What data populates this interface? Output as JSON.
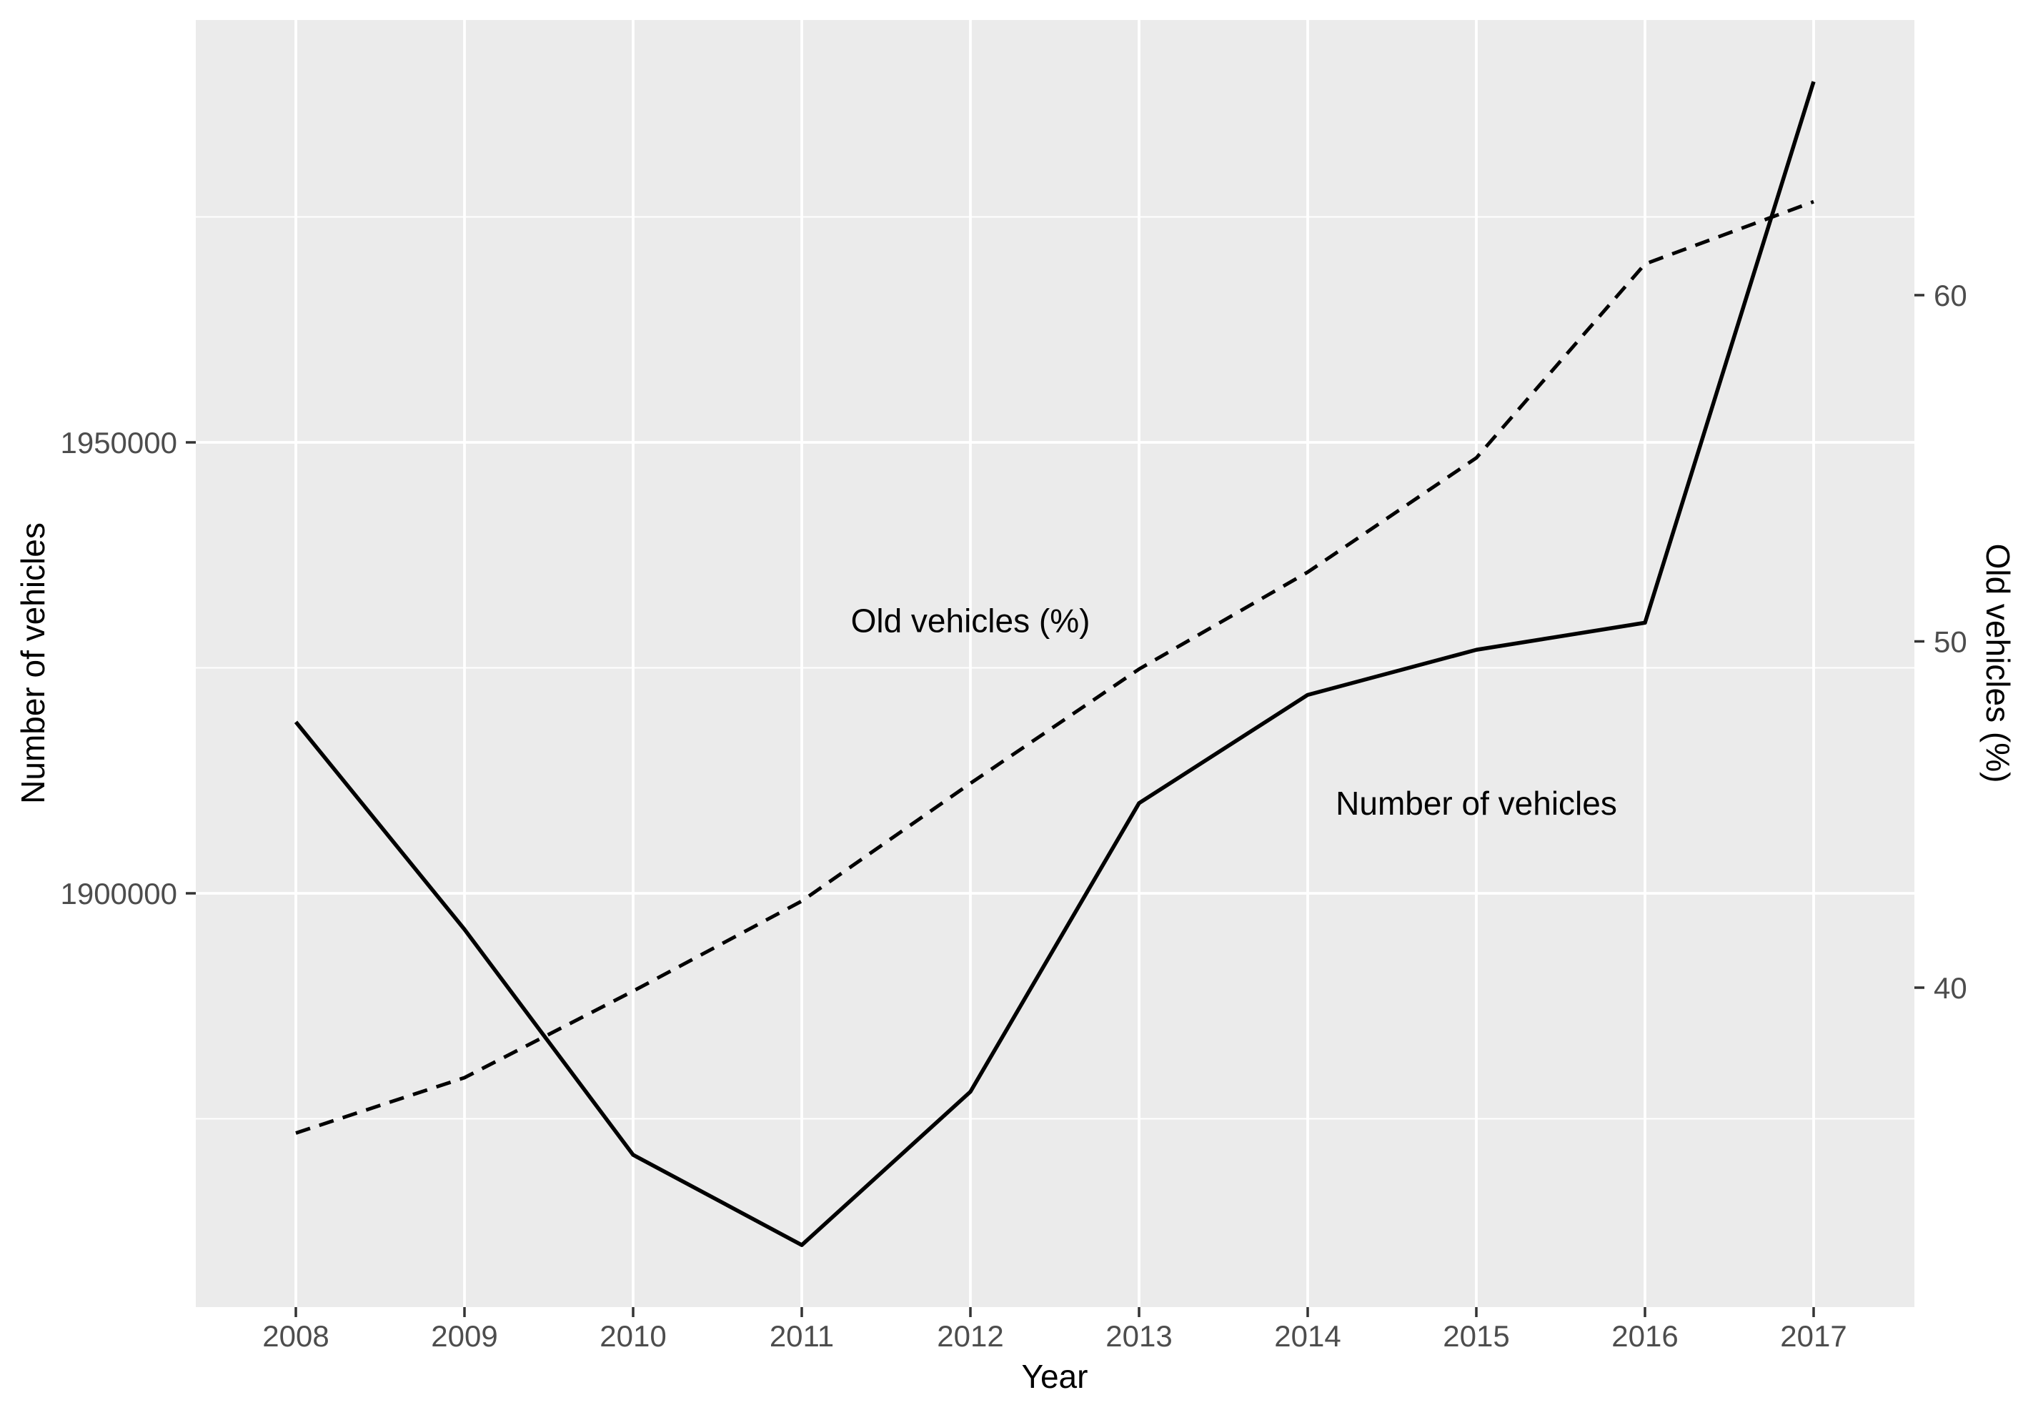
{
  "figure": {
    "background_color": "#FFFFFF",
    "panel_background_color": "#EBEBEB",
    "gridline_color": "#FFFFFF",
    "tick_color": "#333333",
    "tick_label_color": "#4D4D4D",
    "line_color": "#000000"
  },
  "chart_data": {
    "type": "line",
    "x": [
      2008,
      2009,
      2010,
      2011,
      2012,
      2013,
      2014,
      2015,
      2016,
      2017
    ],
    "x_tick_labels": [
      "2008",
      "2009",
      "2010",
      "2011",
      "2012",
      "2013",
      "2014",
      "2015",
      "2016",
      "2017"
    ],
    "series": [
      {
        "name": "Number of vehicles",
        "axis": "left",
        "line_style": "solid",
        "color": "#000000",
        "values": [
          1919000,
          1896000,
          1871000,
          1861000,
          1878000,
          1910000,
          1922000,
          1927000,
          1930000,
          1990000
        ]
      },
      {
        "name": "Old vehicles (%)",
        "axis": "right",
        "line_style": "dashed",
        "color": "#000000",
        "values": [
          35.8,
          37.4,
          39.9,
          42.5,
          45.9,
          49.2,
          52.0,
          55.3,
          60.9,
          62.7
        ]
      }
    ],
    "xlabel": "Year",
    "ylabel_left": "Number of vehicles",
    "ylabel_right": "Old vehicles (%)",
    "y_ticks_left": [
      {
        "value": 1900000,
        "label": "1900000"
      },
      {
        "value": 1950000,
        "label": "1950000"
      }
    ],
    "y_minor_left": [
      1875000,
      1925000,
      1975000
    ],
    "y_ticks_right": [
      {
        "value": 40,
        "label": "40"
      },
      {
        "value": 50,
        "label": "50"
      },
      {
        "value": 60,
        "label": "60"
      }
    ],
    "ylim_left": [
      1854000,
      1997000
    ],
    "ylim_right": [
      30.8,
      67.9
    ],
    "xlim": [
      2007.4,
      2017.6
    ],
    "grid": "white major gridlines on gray panel, minor horizontal gridlines, no legend",
    "annotations": [
      {
        "text": "Old vehicles (%)",
        "x": 2012.0,
        "axis": "right",
        "y": 50.6
      },
      {
        "text": "Number of vehicles",
        "x": 2015.0,
        "axis": "left",
        "y": 1910000
      }
    ]
  }
}
